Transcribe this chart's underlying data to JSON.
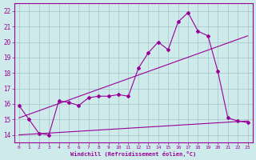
{
  "xlabel": "Windchill (Refroidissement éolien,°C)",
  "bg_color": "#ceeaea",
  "grid_color": "#aacccc",
  "line_color": "#990099",
  "xlim": [
    -0.5,
    23.5
  ],
  "ylim": [
    13.5,
    22.5
  ],
  "xticks": [
    0,
    1,
    2,
    3,
    4,
    5,
    6,
    7,
    8,
    9,
    10,
    11,
    12,
    13,
    14,
    15,
    16,
    17,
    18,
    19,
    20,
    21,
    22,
    23
  ],
  "yticks": [
    14,
    15,
    16,
    17,
    18,
    19,
    20,
    21,
    22
  ],
  "zigzag_x": [
    0,
    1,
    2,
    3,
    4,
    5,
    6,
    7,
    8,
    9,
    10,
    11,
    12,
    13,
    14,
    15,
    16,
    17,
    18,
    19,
    20,
    21,
    22,
    23
  ],
  "zigzag_y": [
    15.9,
    15.0,
    14.1,
    14.0,
    16.2,
    16.1,
    15.9,
    16.4,
    16.5,
    16.5,
    16.6,
    16.5,
    18.3,
    19.3,
    20.0,
    19.5,
    21.3,
    21.9,
    20.7,
    20.4,
    18.1,
    15.1,
    14.9,
    14.8
  ],
  "line1_x": [
    0,
    23
  ],
  "line1_y": [
    15.1,
    20.4
  ],
  "line2_x": [
    0,
    23
  ],
  "line2_y": [
    14.0,
    14.9
  ]
}
